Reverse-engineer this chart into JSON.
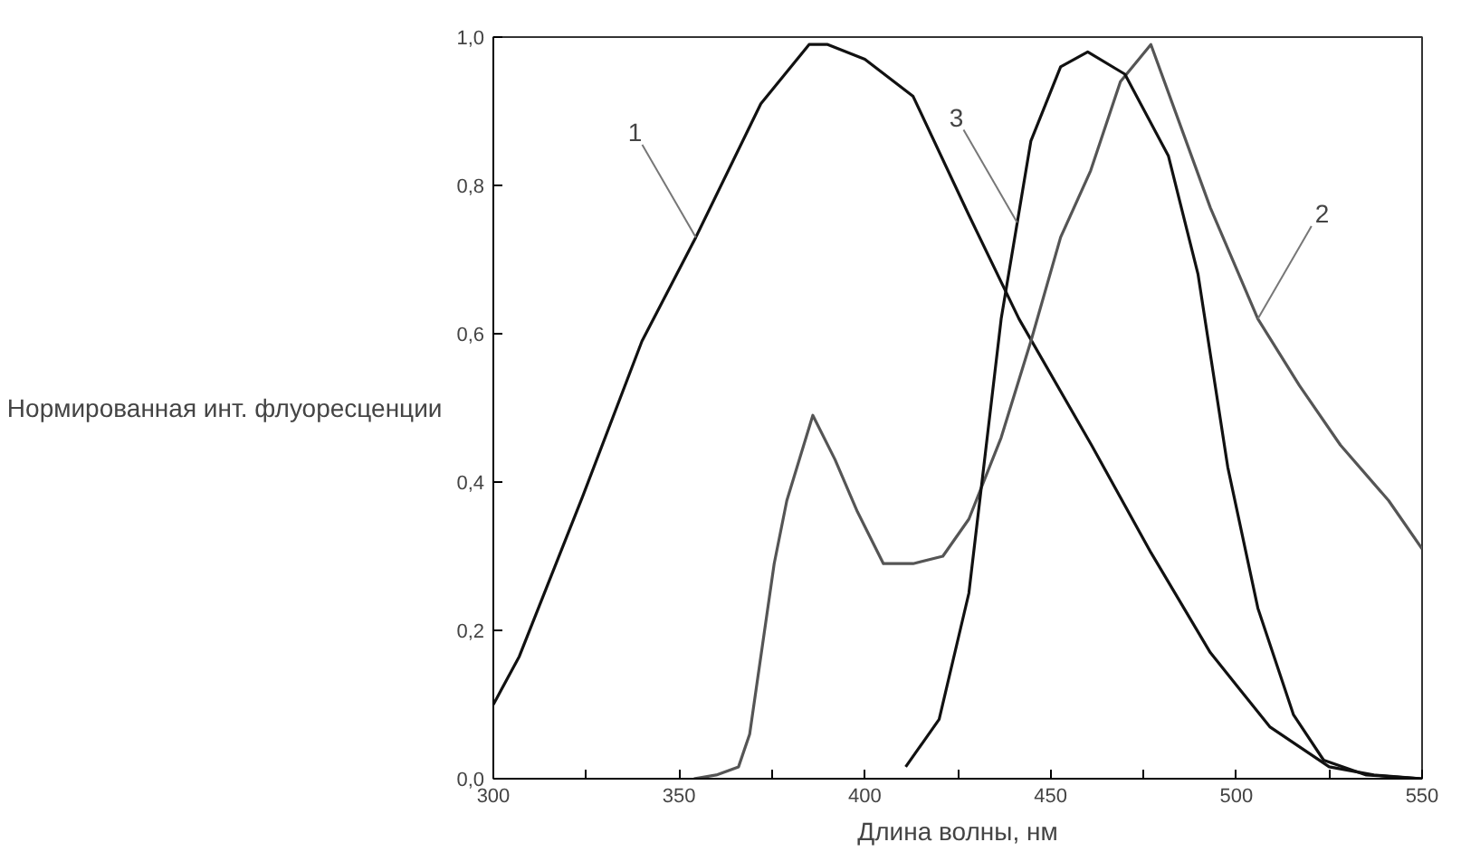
{
  "chart_data": {
    "type": "line",
    "xlabel": "Длина волны, нм",
    "ylabel": "Нормированная инт. флуоресценции",
    "xlim": [
      300,
      550
    ],
    "ylim": [
      0,
      1.0
    ],
    "xticks": [
      300,
      {
        "value": 325,
        "label": null
      },
      350,
      {
        "value": 375,
        "label": null
      },
      400,
      {
        "value": 425,
        "label": null
      },
      450,
      {
        "value": 475,
        "label": null
      },
      500,
      {
        "value": 525,
        "label": null
      },
      550
    ],
    "yticks": [
      {
        "value": 0,
        "label": "0,0"
      },
      {
        "value": 0.2,
        "label": "0,2"
      },
      {
        "value": 0.4,
        "label": "0,4"
      },
      {
        "value": 0.6,
        "label": "0,6"
      },
      {
        "value": 0.8,
        "label": "0,8"
      },
      {
        "value": 1.0,
        "label": "1,0"
      }
    ],
    "grid": false,
    "marker": "none",
    "line_style": "solid",
    "series": [
      {
        "color": "#111111",
        "x": [
          300,
          307,
          324,
          340,
          354.5,
          372,
          385,
          390,
          400,
          413,
          428,
          441.5,
          461,
          477,
          493,
          509,
          525,
          537,
          550
        ],
        "values": [
          0.1,
          0.165,
          0.38,
          0.59,
          0.73,
          0.91,
          0.99,
          0.99,
          0.97,
          0.92,
          0.76,
          0.62,
          0.45,
          0.305,
          0.17,
          0.07,
          0.016,
          0.005,
          0.0
        ]
      },
      {
        "color": "#555555",
        "x": [
          354,
          360,
          366,
          369,
          375.6,
          379,
          386,
          392,
          398,
          405,
          413,
          421,
          428,
          436.7,
          444.7,
          452.7,
          460.8,
          468.8,
          477,
          485,
          493,
          505.8,
          517,
          528,
          541,
          550
        ],
        "values": [
          0.0,
          0.005,
          0.016,
          0.06,
          0.29,
          0.375,
          0.49,
          0.43,
          0.36,
          0.29,
          0.29,
          0.3,
          0.35,
          0.46,
          0.59,
          0.73,
          0.82,
          0.94,
          0.99,
          0.88,
          0.77,
          0.62,
          0.53,
          0.45,
          0.375,
          0.31
        ]
      },
      {
        "color": "#111111",
        "x": [
          411,
          420,
          428,
          436.7,
          444.7,
          452.7,
          460,
          470,
          481.7,
          489.7,
          497.7,
          505.8,
          515.4,
          523.5,
          535,
          550
        ],
        "values": [
          0.016,
          0.08,
          0.25,
          0.62,
          0.86,
          0.96,
          0.98,
          0.95,
          0.84,
          0.68,
          0.42,
          0.23,
          0.086,
          0.025,
          0.005,
          0.0
        ]
      }
    ],
    "annotations": [
      {
        "text": "1",
        "x": 354.5,
        "y": 0.73
      },
      {
        "text": "2",
        "x": 505.8,
        "y": 0.62
      },
      {
        "text": "3",
        "x": 441,
        "y": 0.75
      }
    ]
  }
}
